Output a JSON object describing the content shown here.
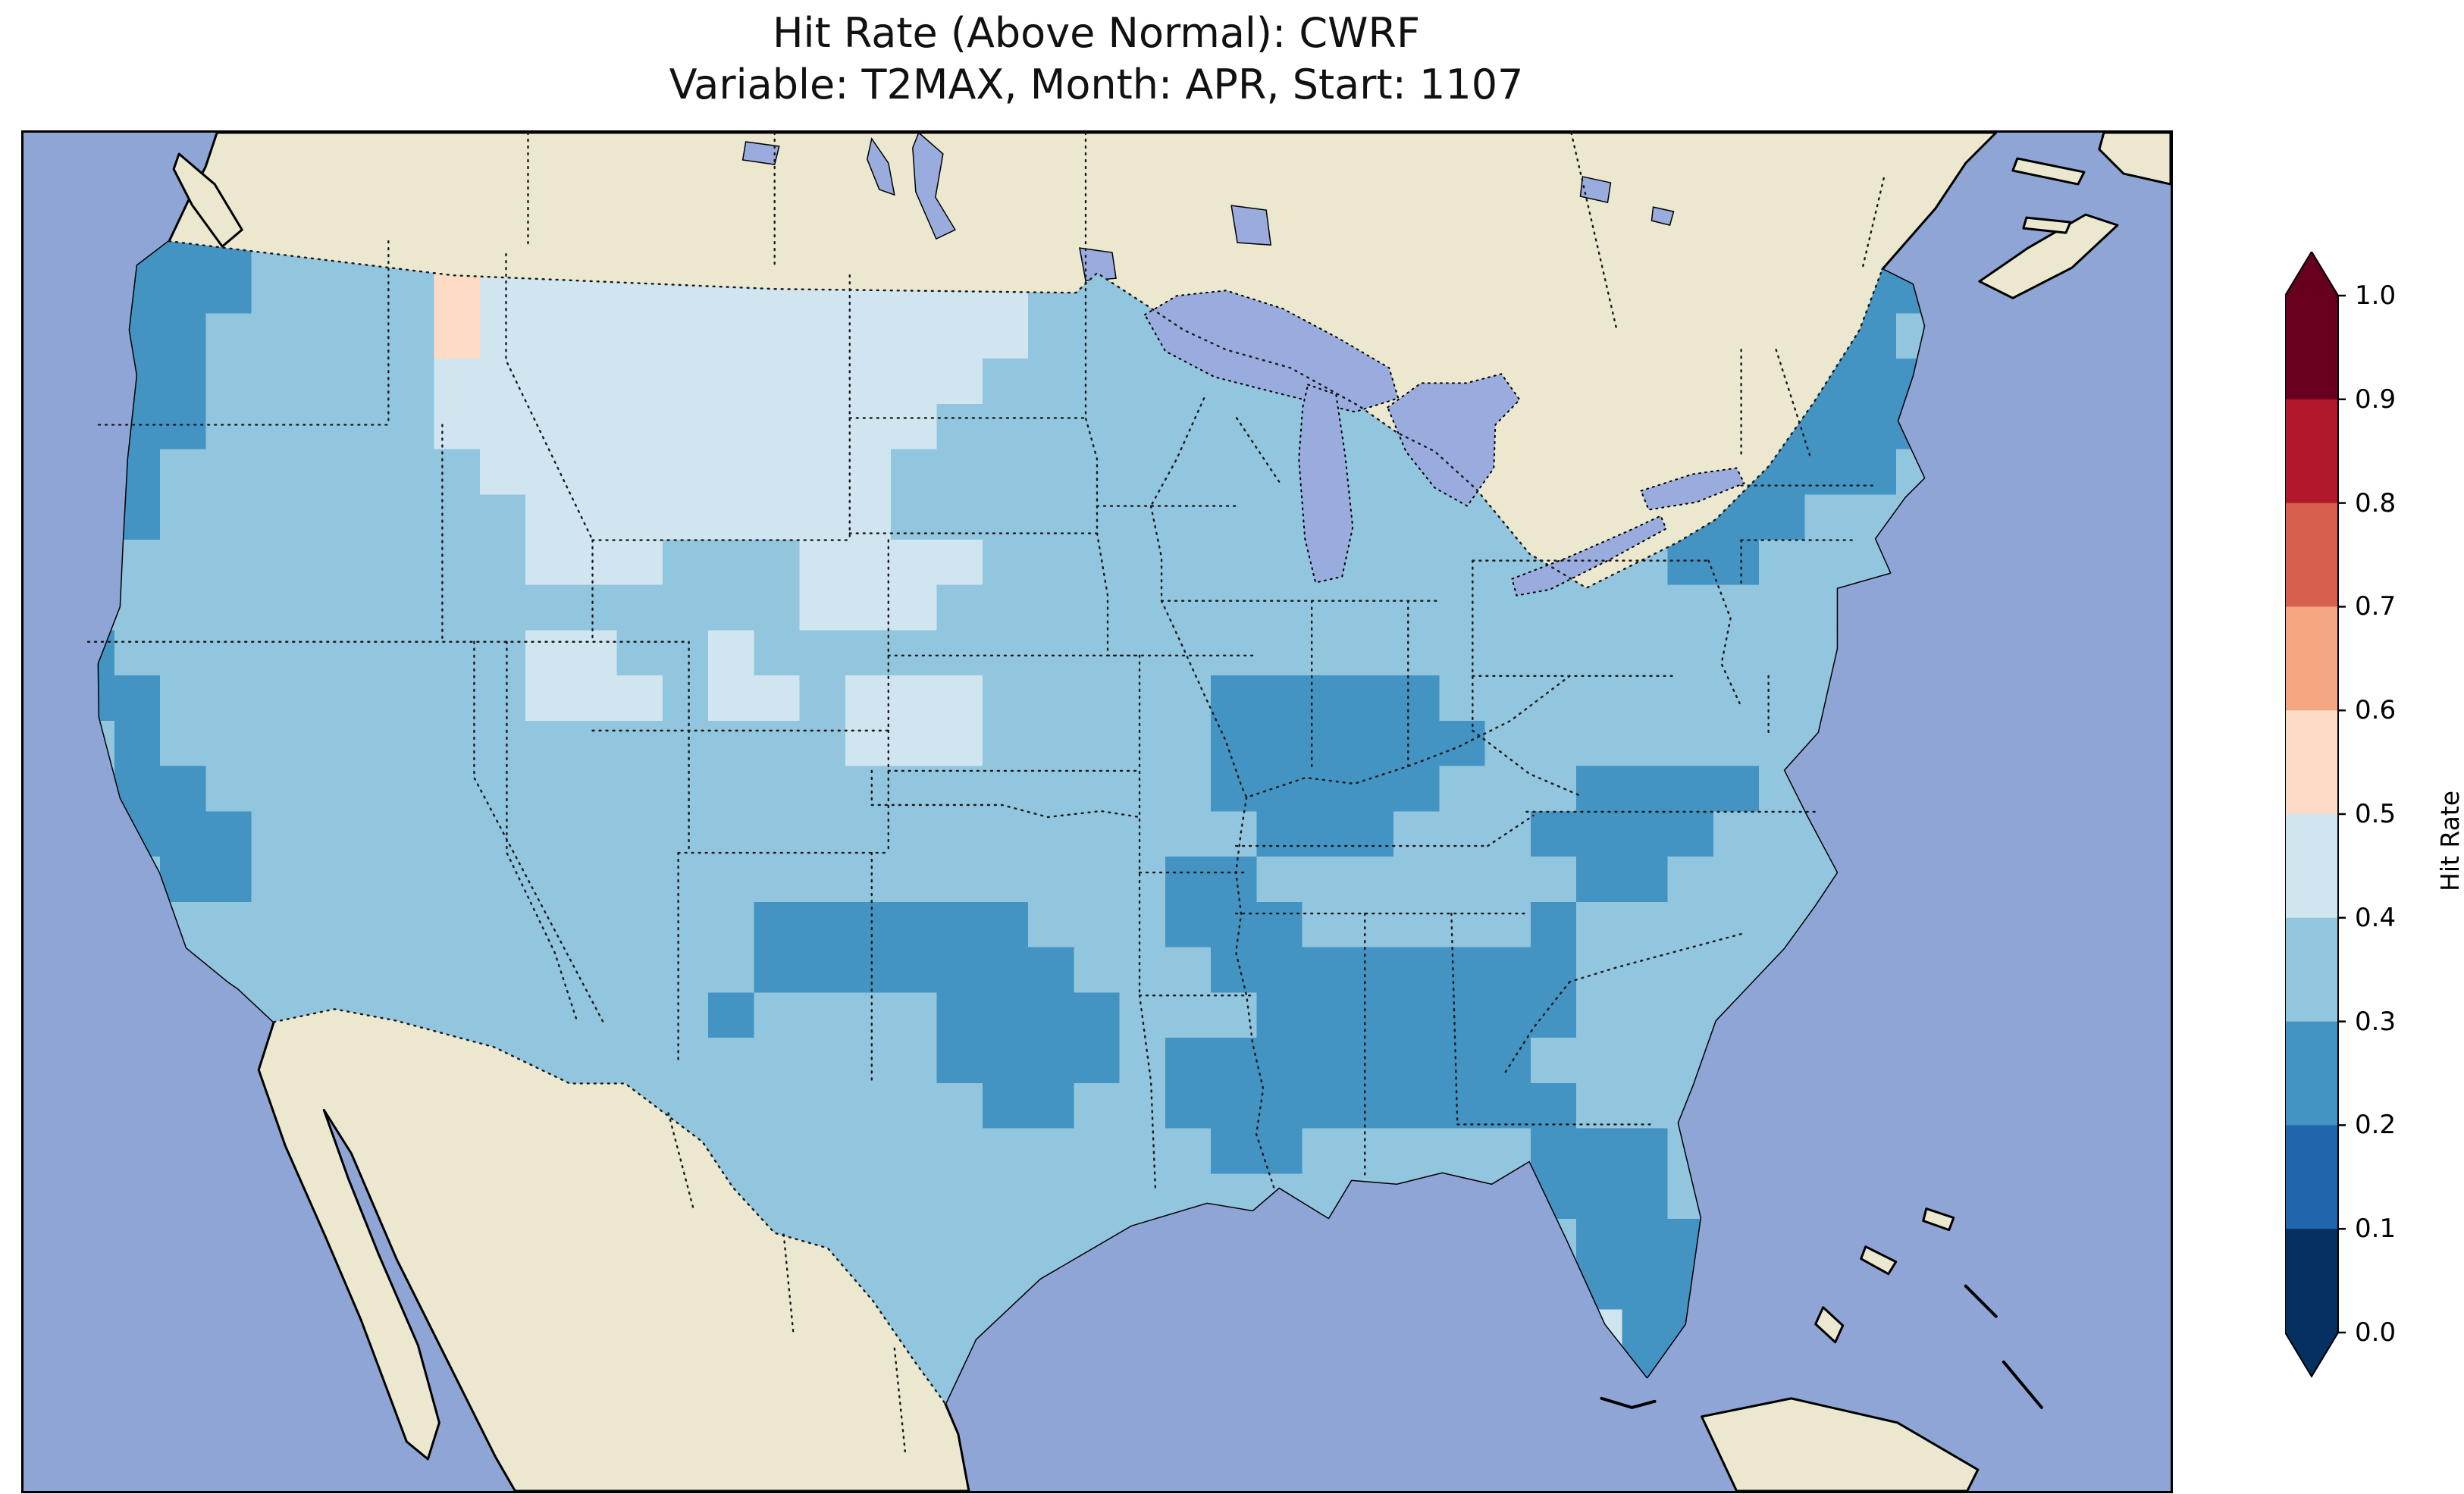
{
  "title": {
    "line1": "Hit Rate (Above Normal): CWRF",
    "line2": "Variable: T2MAX, Month: APR, Start: 1107"
  },
  "colorbar": {
    "label": "Hit Rate",
    "ticks": [
      "1.0",
      "0.9",
      "0.8",
      "0.7",
      "0.6",
      "0.5",
      "0.4",
      "0.3",
      "0.2",
      "0.1",
      "0.0"
    ],
    "colors_top_to_bottom": [
      "#67001f",
      "#b2182b",
      "#d6604d",
      "#f4a582",
      "#fddbc7",
      "#d1e5f0",
      "#92c5de",
      "#4393c3",
      "#2166ac",
      "#053061"
    ]
  },
  "map": {
    "ocean_color": "#8fa5d6",
    "land_color": "#ece8cf",
    "lake_color": "#9aacdd",
    "grid": {
      "cols": 47,
      "rows": 30,
      "bins": {
        "2": "#4393c3",
        "3": "#92c5de",
        "4": "#d1e5f0",
        "5": "#fddbc7"
      },
      "rows_data": [
        "47:3",
        "47:3",
        "2:3,3:2,4:3,1:5,11:4,19:3,2:2,5:3",
        "1:3,4:2,4:3,1:5,12:4,18:3,2:2,5:3",
        "1:3,3:2,5:3,1:5,12:4,16:3,3:2,6:3",
        "1:3,3:2,5:3,12:4,17:3,4:2,5:3",
        "1:3,3:2,5:3,11:4,17:3,5:2,5:3",
        "1:3,2:2,7:3,9:4,18:3,4:2,6:3",
        "1:3,2:2,8:3,8:4,17:3,3:2,8:3",
        "11:3,3:4,3:3,4:4,15:3,2:2,9:3",
        "17:3,3:4,27:3",
        "1:3,1:2,9:3,2:4,2:3,1:4,31:3",
        "1:3,2:2,8:3,3:4,1:3,2:4,1:3,3:4,5:3,5:2,16:3",
        "2:3,1:2,15:3,3:4,5:3,6:2,15:3",
        "2:3,2:2,22:3,5:2,3:3,4:2,9:3",
        "2:3,3:2,22:3,3:2,3:3,4:2,10:3",
        "3:3,2:2,20:3,2:2,7:3,2:2,11:3",
        "16:3,6:2,3:3,3:2,5:3,1:2,13:3",
        "16:3,7:2,3:3,8:2,13:3",
        "15:3,1:2,4:3,4:2,3:3,7:2,13:3",
        "20:3,4:2,1:3,8:2,14:3",
        "21:3,2:2,2:3,9:2,13:3",
        "26:3,2:2,5:3,3:2,11:3",
        "33:3,3:2,11:3",
        "34:3,3:2,10:3",
        "34:3,3:2,10:3",
        "34:3,1:4,2:2,10:3",
        "34:3,1:4,1:2,11:3",
        "47:3",
        "47:3"
      ]
    }
  },
  "chart_data": {
    "type": "heatmap",
    "title": "Hit Rate (Above Normal): CWRF",
    "subtitle": "Variable: T2MAX, Month: APR, Start: 1107",
    "model": "CWRF",
    "variable": "T2MAX",
    "month": "APR",
    "start": "1107",
    "geography": "Contiguous United States gridded verification map (ocean/Canada/Mexico masked)",
    "colorbar": {
      "label": "Hit Rate",
      "range": [
        0.0,
        1.0
      ],
      "tick_step": 0.1,
      "bins": 10,
      "palette": "RdBu reversed (blue = low hit rate, red = high), extend arrows both ends",
      "legend_position": "right vertical"
    },
    "observed_value_range": [
      0.2,
      0.6
    ],
    "dominant_bin": "0.3-0.4",
    "regional_estimates": [
      {
        "region": "Most of CONUS (interior West, Plains, Midwest, Ohio Valley, mid-Atlantic, Texas)",
        "hit_rate": "0.3-0.4"
      },
      {
        "region": "Montana, Wyoming, western Dakotas, northern Plains",
        "hit_rate": "0.4-0.5"
      },
      {
        "region": "Northwest Montana (few grid cells)",
        "hit_rate": "0.5-0.6"
      },
      {
        "region": "Coastal Washington and Oregon",
        "hit_rate": "0.2-0.3"
      },
      {
        "region": "Northern and central California coast",
        "hit_rate": "0.2-0.3"
      },
      {
        "region": "Texas Panhandle, western Oklahoma, central Texas",
        "hit_rate": "0.2-0.3"
      },
      {
        "region": "Missouri, southern Illinois, Ozarks",
        "hit_rate": "0.2-0.3"
      },
      {
        "region": "Louisiana, Mississippi, Alabama, Georgia",
        "hit_rate": "0.2-0.3"
      },
      {
        "region": "Florida peninsula",
        "hit_rate": "0.2-0.3"
      },
      {
        "region": "Western Virginia and Carolinas (Appalachians)",
        "hit_rate": "0.2-0.3"
      },
      {
        "region": "Upstate New York and New England",
        "hit_rate": "0.2-0.3"
      },
      {
        "region": "Central Nebraska / Kansas patches",
        "hit_rate": "0.4-0.5"
      }
    ]
  }
}
